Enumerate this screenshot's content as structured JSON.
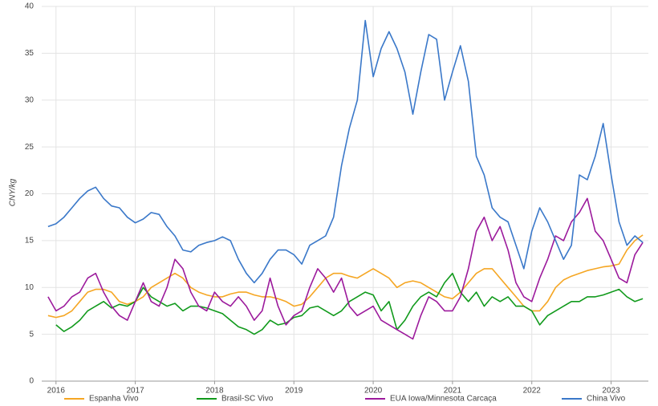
{
  "chart_data": {
    "type": "line",
    "y_label": "CNY/kg",
    "x": [
      2015.9,
      2016.0,
      2016.1,
      2016.2,
      2016.3,
      2016.4,
      2016.5,
      2016.6,
      2016.7,
      2016.8,
      2016.9,
      2017.0,
      2017.1,
      2017.2,
      2017.3,
      2017.4,
      2017.5,
      2017.6,
      2017.7,
      2017.8,
      2017.9,
      2018.0,
      2018.1,
      2018.2,
      2018.3,
      2018.4,
      2018.5,
      2018.6,
      2018.7,
      2018.8,
      2018.9,
      2019.0,
      2019.1,
      2019.2,
      2019.3,
      2019.4,
      2019.5,
      2019.6,
      2019.7,
      2019.8,
      2019.9,
      2020.0,
      2020.1,
      2020.2,
      2020.3,
      2020.4,
      2020.5,
      2020.6,
      2020.7,
      2020.8,
      2020.9,
      2021.0,
      2021.1,
      2021.2,
      2021.3,
      2021.4,
      2021.5,
      2021.6,
      2021.7,
      2021.8,
      2021.9,
      2022.0,
      2022.1,
      2022.2,
      2022.3,
      2022.4,
      2022.5,
      2022.6,
      2022.7,
      2022.8,
      2022.9,
      2023.0,
      2023.1,
      2023.2,
      2023.3,
      2023.4
    ],
    "xlim": [
      2015.82,
      2023.47
    ],
    "xticks": [
      2016,
      2017,
      2018,
      2019,
      2020,
      2021,
      2022,
      2023
    ],
    "ylim": [
      0,
      40
    ],
    "yticks": [
      0,
      5,
      10,
      15,
      20,
      25,
      30,
      35,
      40
    ],
    "grid": true,
    "series": [
      {
        "name": "Espanha Vivo",
        "color": "#f5a623",
        "values": [
          7.0,
          6.8,
          7.0,
          7.5,
          8.5,
          9.5,
          9.8,
          9.8,
          9.5,
          8.5,
          8.2,
          8.5,
          9.0,
          10.0,
          10.5,
          11.0,
          11.5,
          11.0,
          10.0,
          9.5,
          9.2,
          9.0,
          9.0,
          9.3,
          9.5,
          9.5,
          9.2,
          9.0,
          9.0,
          8.8,
          8.5,
          8.0,
          8.2,
          9.0,
          10.0,
          11.0,
          11.5,
          11.5,
          11.2,
          11.0,
          11.5,
          12.0,
          11.5,
          11.0,
          10.0,
          10.5,
          10.7,
          10.5,
          10.0,
          9.5,
          9.0,
          8.8,
          9.5,
          10.5,
          11.5,
          12.0,
          12.0,
          11.0,
          10.0,
          9.0,
          8.0,
          7.5,
          7.5,
          8.5,
          10.0,
          10.8,
          11.2,
          11.5,
          11.8,
          12.0,
          12.2,
          12.3,
          12.5,
          14.0,
          15.0,
          15.6
        ]
      },
      {
        "name": "Brasil-SC Vivo",
        "color": "#119a1c",
        "values": [
          null,
          6.0,
          5.3,
          5.8,
          6.5,
          7.5,
          8.0,
          8.5,
          7.8,
          8.2,
          8.0,
          8.5,
          10.0,
          9.0,
          8.5,
          8.0,
          8.3,
          7.5,
          8.0,
          8.0,
          7.8,
          7.5,
          7.2,
          6.5,
          5.8,
          5.5,
          5.0,
          5.5,
          6.5,
          6.0,
          6.2,
          6.8,
          7.0,
          7.8,
          8.0,
          7.5,
          7.0,
          7.5,
          8.5,
          9.0,
          9.5,
          9.2,
          7.5,
          8.5,
          5.5,
          6.5,
          8.0,
          9.0,
          9.5,
          9.0,
          10.5,
          11.5,
          9.5,
          8.5,
          9.5,
          8.0,
          9.0,
          8.5,
          9.0,
          8.0,
          8.0,
          7.5,
          6.0,
          7.0,
          7.5,
          8.0,
          8.5,
          8.5,
          9.0,
          9.0,
          9.2,
          9.5,
          9.8,
          9.0,
          8.5,
          8.8
        ]
      },
      {
        "name": "EUA Iowa/Minnesota Carcaça",
        "color": "#9c1a9c",
        "values": [
          9.0,
          7.5,
          8.0,
          9.0,
          9.5,
          11.0,
          11.5,
          9.5,
          8.0,
          7.0,
          6.5,
          8.5,
          10.5,
          8.5,
          8.0,
          10.0,
          13.0,
          12.0,
          9.5,
          8.0,
          7.5,
          9.5,
          8.5,
          8.0,
          9.0,
          8.0,
          6.5,
          7.5,
          11.0,
          8.0,
          6.0,
          7.0,
          7.5,
          10.0,
          12.0,
          11.0,
          9.5,
          11.0,
          8.0,
          7.0,
          7.5,
          8.0,
          6.5,
          6.0,
          5.5,
          5.0,
          4.5,
          7.0,
          9.0,
          8.5,
          7.5,
          7.5,
          9.0,
          12.0,
          16.0,
          17.5,
          15.0,
          16.5,
          14.0,
          10.5,
          9.0,
          8.5,
          11.0,
          13.0,
          15.5,
          15.0,
          17.0,
          18.0,
          19.5,
          16.0,
          15.0,
          13.0,
          11.0,
          10.5,
          13.5,
          14.8
        ]
      },
      {
        "name": "China Vivo",
        "color": "#3a78c9",
        "values": [
          16.5,
          16.8,
          17.5,
          18.5,
          19.5,
          20.3,
          20.7,
          19.5,
          18.7,
          18.5,
          17.5,
          16.9,
          17.3,
          18.0,
          17.8,
          16.5,
          15.5,
          14.0,
          13.8,
          14.5,
          14.8,
          15.0,
          15.4,
          15.0,
          13.0,
          11.5,
          10.5,
          11.5,
          13.0,
          14.0,
          14.0,
          13.5,
          12.5,
          14.5,
          15.0,
          15.5,
          17.5,
          23,
          27,
          30,
          38.5,
          32.5,
          35.5,
          37.3,
          35.5,
          33.0,
          28.5,
          33,
          37,
          36.5,
          30,
          33,
          35.8,
          32,
          24,
          22,
          18.5,
          17.5,
          17,
          14.5,
          12,
          16,
          18.5,
          17,
          15,
          13,
          14.5,
          22,
          21.5,
          24,
          27.5,
          22,
          17,
          14.5,
          15.5,
          14.8
        ]
      }
    ]
  }
}
